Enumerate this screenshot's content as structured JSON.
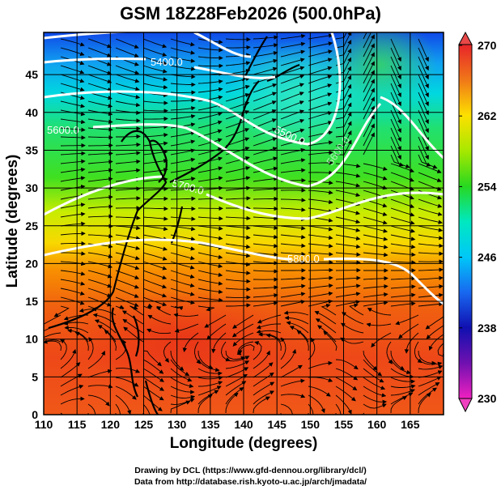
{
  "title": "GSM 18Z28Feb2026 (500.0hPa)",
  "footer": {
    "line1": "Drawing by DCL (https://www.gfd-dennou.org/library/dcl/)",
    "line2": "Data from http://database.rish.kyoto-u.ac.jp/arch/jmadata/"
  },
  "chart_data": {
    "type": "heatmap",
    "title": "GSM 18Z28Feb2026 (500.0hPa)",
    "xlabel": "Longitude (degrees)",
    "ylabel": "Latitude  (degrees)",
    "xlim": [
      110,
      170
    ],
    "ylim": [
      0,
      50
    ],
    "x_ticks": [
      "110",
      "115",
      "120",
      "125",
      "130",
      "135",
      "140",
      "145",
      "150",
      "155",
      "160",
      "165"
    ],
    "y_ticks": [
      "0",
      "5",
      "10",
      "15",
      "20",
      "25",
      "30",
      "35",
      "40",
      "45"
    ],
    "grid": true,
    "fill_variable_range": [
      230,
      270
    ],
    "colorbar": {
      "ticks": [
        "270",
        "262",
        "254",
        "246",
        "238",
        "230"
      ],
      "colors": [
        "#e8242a",
        "#f07818",
        "#fde000",
        "#a8e800",
        "#28d820",
        "#00e8c0",
        "#00c8f8",
        "#1868f0",
        "#1010b0",
        "#7010b0",
        "#f020c0"
      ],
      "extend": "both",
      "placement": "right"
    },
    "contour_color": "#ffffff",
    "contour_labels": [
      "5400.0",
      "5500.0",
      "5600.0",
      "5700.0",
      "5800.0",
      "5600.0"
    ],
    "overlay": "streamlines"
  }
}
